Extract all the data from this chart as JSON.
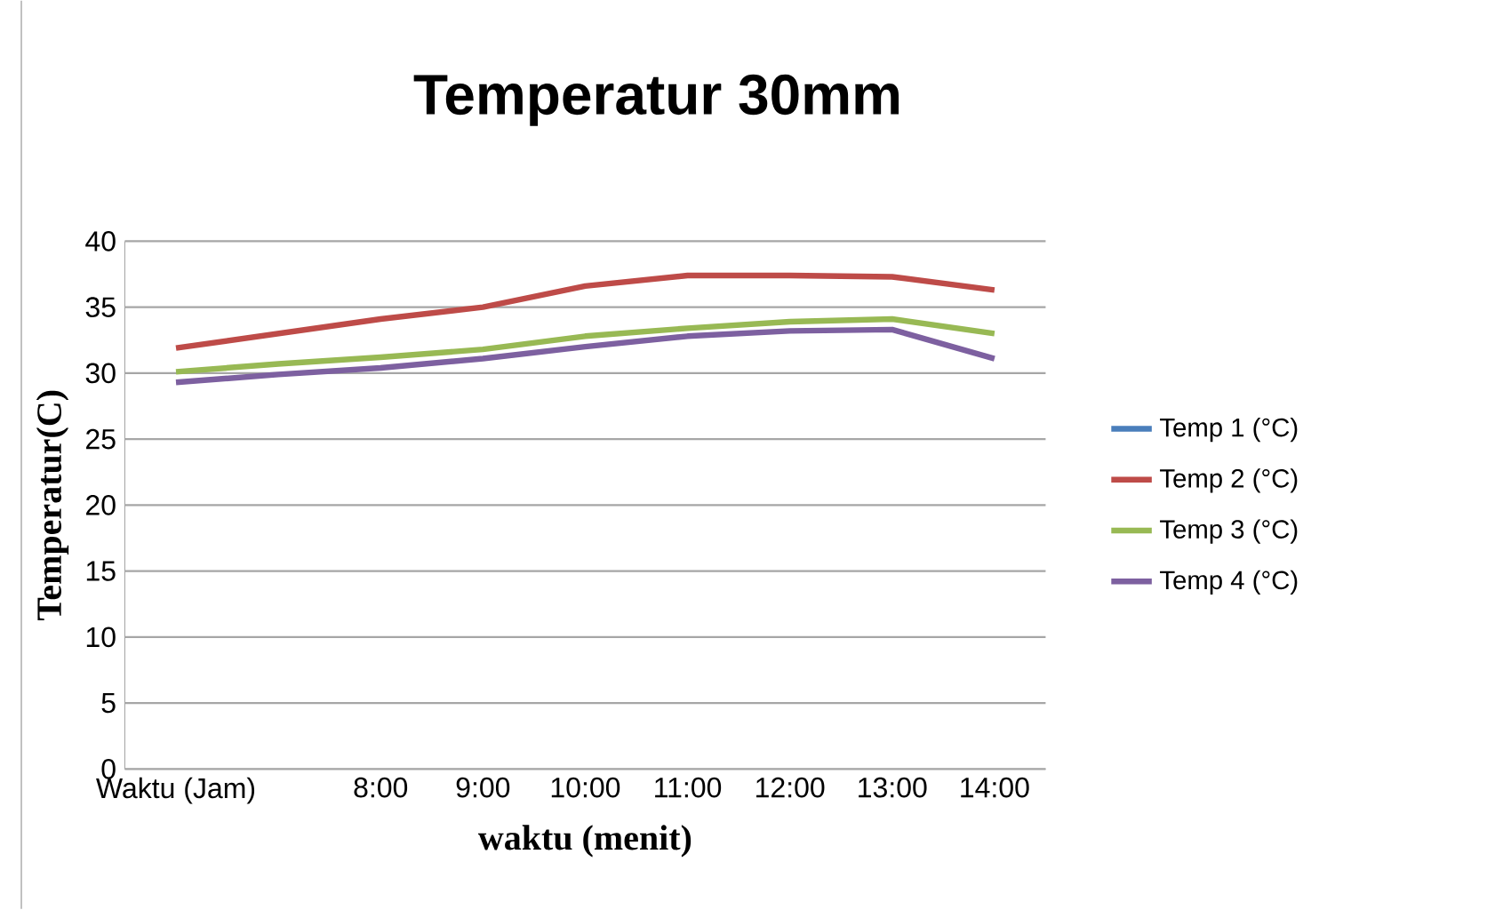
{
  "chart_data": {
    "type": "line",
    "title": "Temperatur 30mm",
    "xlabel": "waktu (menit)",
    "ylabel": "Temperatur(C)",
    "categories": [
      "Waktu (Jam)",
      null,
      "8:00",
      "9:00",
      "10:00",
      "11:00",
      "12:00",
      "13:00",
      "14:00"
    ],
    "series": [
      {
        "name": "Temp 1 (°C)",
        "color": "#4a7ebb",
        "values": [
          null,
          null,
          null,
          null,
          null,
          null,
          null,
          null,
          null
        ]
      },
      {
        "name": "Temp 2 (°C)",
        "color": "#be4b48",
        "values": [
          31.9,
          33.0,
          34.1,
          35.0,
          36.6,
          37.4,
          37.4,
          37.3,
          36.3
        ]
      },
      {
        "name": "Temp 3 (°C)",
        "color": "#98b954",
        "values": [
          30.1,
          30.7,
          31.2,
          31.8,
          32.8,
          33.4,
          33.9,
          34.1,
          33.0
        ]
      },
      {
        "name": "Temp 4 (°C)",
        "color": "#7d60a0",
        "values": [
          29.3,
          29.9,
          30.4,
          31.1,
          32.0,
          32.8,
          33.2,
          33.3,
          31.1
        ]
      }
    ],
    "ylim": [
      0,
      40
    ],
    "yticks": [
      0,
      5,
      10,
      15,
      20,
      25,
      30,
      35,
      40
    ],
    "grid": "y",
    "legend": "right",
    "marker": "none",
    "line_style": "solid"
  }
}
